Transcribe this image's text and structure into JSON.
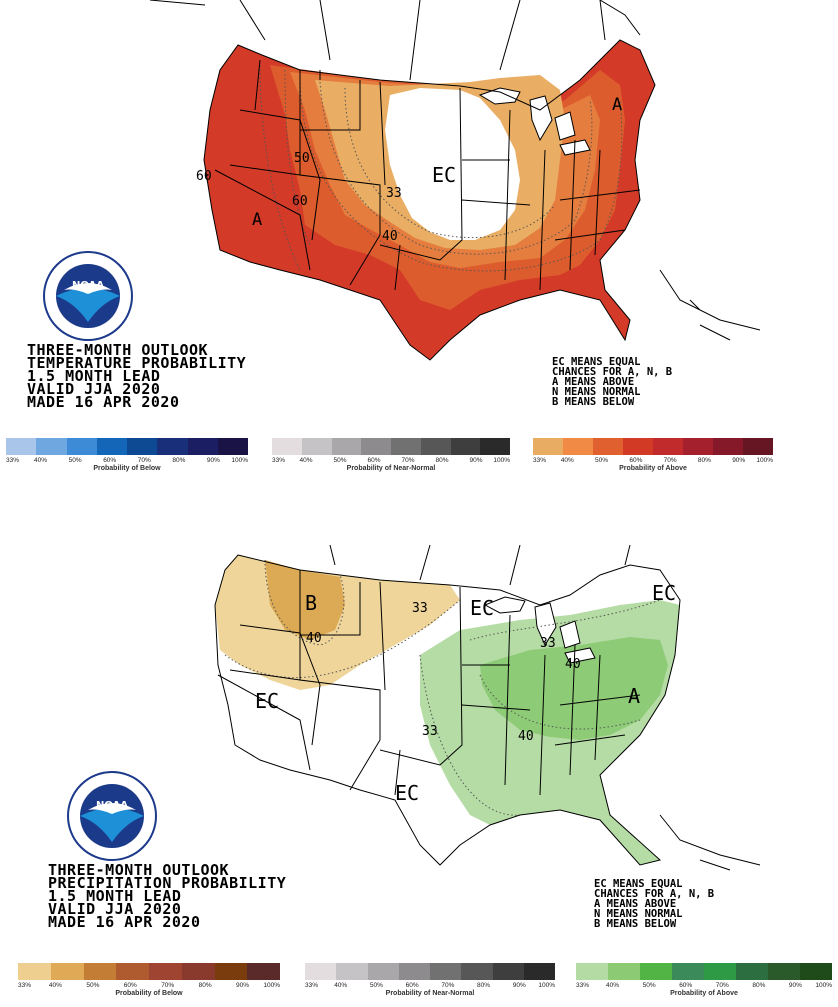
{
  "temperature_map": {
    "title_lines": [
      "THREE-MONTH OUTLOOK",
      "TEMPERATURE PROBABILITY",
      "1.5 MONTH LEAD",
      "VALID JJA 2020",
      "MADE 16 APR 2020"
    ],
    "legend_lines": [
      "EC MEANS EQUAL",
      "CHANCES FOR A, N, B",
      "A MEANS ABOVE",
      "N MEANS NORMAL",
      "B MEANS BELOW"
    ],
    "labels": {
      "ec": "EC",
      "a_west": "A",
      "a_east": "A",
      "c50": "50",
      "c60_west": "60",
      "c60_mid": "60",
      "c40": "40",
      "c33": "33"
    },
    "scales": [
      {
        "caption": "Probability of Below",
        "colors": [
          "#a9c6ea",
          "#6fa8e0",
          "#3d8ad6",
          "#1466b8",
          "#0e4a94",
          "#1a2f7a",
          "#1c1e63",
          "#1a1446"
        ],
        "ticks": [
          "33%",
          "40%",
          "50%",
          "60%",
          "70%",
          "80%",
          "90%",
          "100%"
        ]
      },
      {
        "caption": "Probability of Near-Normal",
        "colors": [
          "#e3dde0",
          "#c6c3c6",
          "#a9a7a9",
          "#8d8b8d",
          "#727172",
          "#585758",
          "#3f3e3f",
          "#2a2a2a"
        ],
        "ticks": [
          "33%",
          "40%",
          "50%",
          "60%",
          "70%",
          "80%",
          "90%",
          "100%"
        ]
      },
      {
        "caption": "Probability of Above",
        "colors": [
          "#e8ad62",
          "#f08a45",
          "#e06030",
          "#d23a26",
          "#c12b2b",
          "#a3202c",
          "#85192a",
          "#661522"
        ],
        "ticks": [
          "33%",
          "40%",
          "50%",
          "60%",
          "70%",
          "80%",
          "90%",
          "100%"
        ]
      }
    ]
  },
  "precipitation_map": {
    "title_lines": [
      "THREE-MONTH OUTLOOK",
      "PRECIPITATION PROBABILITY",
      "1.5 MONTH LEAD",
      "VALID JJA 2020",
      "MADE 16 APR 2020"
    ],
    "legend_lines": [
      "EC MEANS EQUAL",
      "CHANCES FOR A, N, B",
      "A MEANS ABOVE",
      "N MEANS NORMAL",
      "B MEANS BELOW"
    ],
    "labels": {
      "ec_west": "EC",
      "ec_south": "EC",
      "ec_north": "EC",
      "ec_ne": "EC",
      "b": "B",
      "a": "A",
      "c33_nw": "33",
      "c40_nw": "40",
      "c33_gl": "33",
      "c40_oh": "40",
      "c33_plains": "33",
      "c40_ms": "40"
    },
    "scales": [
      {
        "caption": "Probability of Below",
        "colors": [
          "#efcf8f",
          "#dfa955",
          "#c47d35",
          "#b05a2f",
          "#9e4431",
          "#8a3a2d",
          "#7a3c0c",
          "#5a2a2a"
        ],
        "ticks": [
          "33%",
          "40%",
          "50%",
          "60%",
          "70%",
          "80%",
          "90%",
          "100%"
        ]
      },
      {
        "caption": "Probability of Near-Normal",
        "colors": [
          "#e3dde0",
          "#c6c3c6",
          "#a9a7a9",
          "#8d8b8d",
          "#727172",
          "#585758",
          "#3f3e3f",
          "#2a2a2a"
        ],
        "ticks": [
          "33%",
          "40%",
          "50%",
          "60%",
          "70%",
          "80%",
          "90%",
          "100%"
        ]
      },
      {
        "caption": "Probability of Above",
        "colors": [
          "#b4dba3",
          "#8ccb74",
          "#52b445",
          "#3b8a5a",
          "#2f9a45",
          "#2c6e3f",
          "#2b5a2a",
          "#1f4a1a"
        ],
        "ticks": [
          "33%",
          "40%",
          "50%",
          "60%",
          "70%",
          "80%",
          "90%",
          "100%"
        ]
      }
    ]
  },
  "logo": {
    "text": "NOAA",
    "ring_text": "NATIONAL OCEANIC AND ATMOSPHERIC ADMINISTRATION",
    "ring_bottom": "U.S. DEPARTMENT OF COMMERCE"
  },
  "colors": {
    "above_33": "#e8ad62",
    "above_40": "#e57a3d",
    "above_50": "#dd5a2c",
    "above_60": "#cf3727",
    "precip_below_33": "#efd59a",
    "precip_below_40": "#dcaa55",
    "precip_above_33": "#b5dca5",
    "precip_above_40": "#8dcb77"
  }
}
